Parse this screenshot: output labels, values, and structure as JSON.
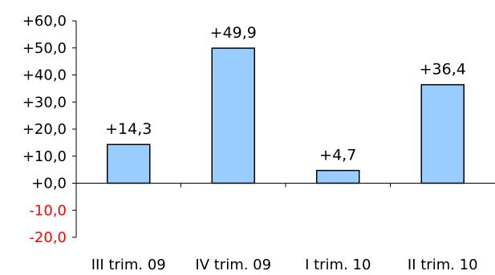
{
  "chart_data": {
    "type": "bar",
    "title": "",
    "xlabel": "",
    "ylabel": "",
    "categories": [
      "III trim. 09",
      "IV trim. 09",
      "I trim. 10",
      "II trim. 10"
    ],
    "values": [
      14.3,
      49.9,
      4.7,
      36.4
    ],
    "value_labels": [
      "+14,3",
      "+49,9",
      "+4,7",
      "+36,4"
    ],
    "ylim": [
      -20,
      60
    ],
    "yticks": [
      60,
      50,
      40,
      30,
      20,
      10,
      0,
      -10,
      -20
    ],
    "ytick_labels": [
      "+60,0",
      "+50,0",
      "+40,0",
      "+30,0",
      "+20,0",
      "+10,0",
      "+0,0",
      "-10,0",
      "-20,0"
    ],
    "grid": false,
    "legend": "none",
    "colors": {
      "bar_fill": "#99CCFF",
      "bar_stroke": "#000000",
      "positive_tick": "#000000",
      "negative_tick": "#FF0000"
    }
  }
}
